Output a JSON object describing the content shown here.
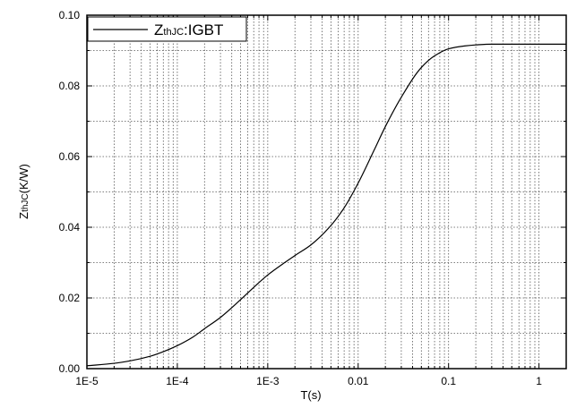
{
  "chart_data": {
    "type": "line",
    "x_scale": "log",
    "xlim": [
      1e-05,
      2
    ],
    "ylim": [
      0,
      0.1
    ],
    "xlabel": "T(s)",
    "ylabel": {
      "main": "Z",
      "sub": "thJC",
      "rest": "(K/W)"
    },
    "x_ticks": [
      {
        "value": 1e-05,
        "label": "1E-5"
      },
      {
        "value": 0.0001,
        "label": "1E-4"
      },
      {
        "value": 0.001,
        "label": "1E-3"
      },
      {
        "value": 0.01,
        "label": "0.01"
      },
      {
        "value": 0.1,
        "label": "0.1"
      },
      {
        "value": 1,
        "label": "1"
      }
    ],
    "y_ticks": [
      {
        "value": 0.0,
        "label": "0.00"
      },
      {
        "value": 0.02,
        "label": "0.02"
      },
      {
        "value": 0.04,
        "label": "0.04"
      },
      {
        "value": 0.06,
        "label": "0.06"
      },
      {
        "value": 0.08,
        "label": "0.08"
      },
      {
        "value": 0.1,
        "label": "0.10"
      }
    ],
    "y_minor_step": 0.01,
    "grid": true,
    "legend_position": "top-left",
    "series": [
      {
        "name": {
          "main": "Z",
          "sub": "thJC",
          "rest": ":IGBT"
        },
        "color": "#000000",
        "x": [
          1e-05,
          2e-05,
          3e-05,
          5e-05,
          7e-05,
          0.0001,
          0.00015,
          0.0002,
          0.0003,
          0.0005,
          0.0007,
          0.001,
          0.0015,
          0.002,
          0.003,
          0.005,
          0.007,
          0.01,
          0.015,
          0.02,
          0.03,
          0.05,
          0.07,
          0.1,
          0.15,
          0.2,
          0.3,
          0.5,
          1,
          2
        ],
        "y": [
          0.0008,
          0.0015,
          0.0022,
          0.0035,
          0.0048,
          0.0065,
          0.009,
          0.0113,
          0.0145,
          0.0195,
          0.023,
          0.0265,
          0.0298,
          0.032,
          0.035,
          0.0405,
          0.0455,
          0.0525,
          0.0618,
          0.0685,
          0.0768,
          0.0852,
          0.0885,
          0.0905,
          0.0913,
          0.0916,
          0.0918,
          0.0918,
          0.0918,
          0.0918
        ]
      }
    ]
  }
}
